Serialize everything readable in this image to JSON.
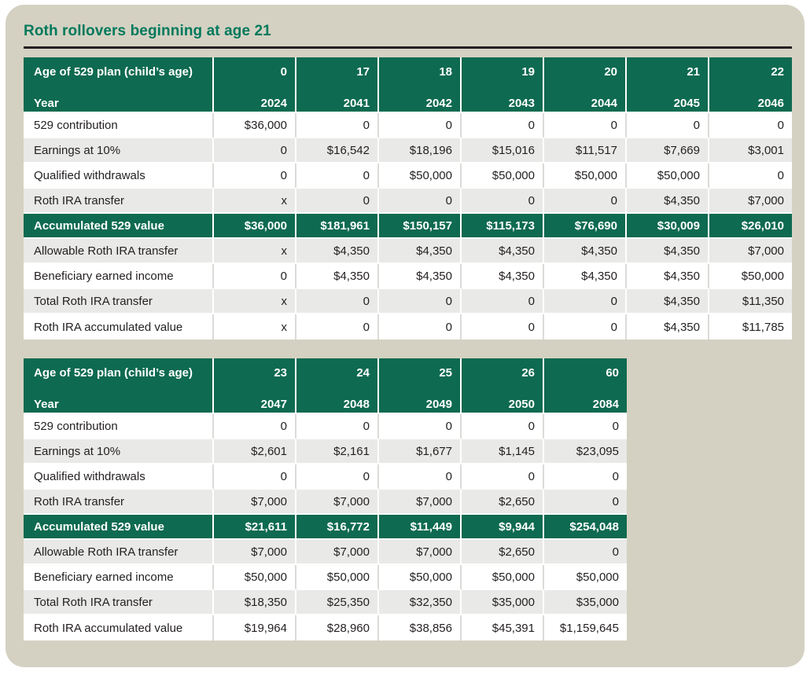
{
  "page": {
    "title": "Roth rollovers beginning at age 21"
  },
  "colors": {
    "title_green": "#00795c",
    "header_green": "#0e6a50",
    "panel_beige": "#d4d1c2",
    "row_gray": "#e9e9e7",
    "sep_gray": "#dbdbd8",
    "rule_dark": "#231f20",
    "text_dark": "#231f20"
  },
  "tables": [
    {
      "header": {
        "age_label": "Age of 529 plan (child’s age)",
        "year_label": "Year",
        "ages": [
          "0",
          "17",
          "18",
          "19",
          "20",
          "21",
          "22"
        ],
        "years": [
          "2024",
          "2041",
          "2042",
          "2043",
          "2044",
          "2045",
          "2046"
        ]
      },
      "rows": [
        {
          "label": "529 contribution",
          "style": "white",
          "values": [
            "$36,000",
            "0",
            "0",
            "0",
            "0",
            "0",
            "0"
          ]
        },
        {
          "label": "Earnings at 10%",
          "style": "gray",
          "values": [
            "0",
            "$16,542",
            "$18,196",
            "$15,016",
            "$11,517",
            "$7,669",
            "$3,001"
          ]
        },
        {
          "label": "Qualified withdrawals",
          "style": "white",
          "values": [
            "0",
            "0",
            "$50,000",
            "$50,000",
            "$50,000",
            "$50,000",
            "0"
          ]
        },
        {
          "label": "Roth IRA transfer",
          "style": "gray",
          "values": [
            "x",
            "0",
            "0",
            "0",
            "0",
            "$4,350",
            "$7,000"
          ]
        },
        {
          "label": "Accumulated 529 value",
          "style": "green",
          "values": [
            "$36,000",
            "$181,961",
            "$150,157",
            "$115,173",
            "$76,690",
            "$30,009",
            "$26,010"
          ]
        },
        {
          "label": "Allowable Roth IRA transfer",
          "style": "gray",
          "values": [
            "x",
            "$4,350",
            "$4,350",
            "$4,350",
            "$4,350",
            "$4,350",
            "$7,000"
          ]
        },
        {
          "label": "Beneficiary earned income",
          "style": "white",
          "values": [
            "0",
            "$4,350",
            "$4,350",
            "$4,350",
            "$4,350",
            "$4,350",
            "$50,000"
          ]
        },
        {
          "label": "Total Roth IRA transfer",
          "style": "gray",
          "values": [
            "x",
            "0",
            "0",
            "0",
            "0",
            "$4,350",
            "$11,350"
          ]
        },
        {
          "label": "Roth IRA accumulated value",
          "style": "white",
          "values": [
            "x",
            "0",
            "0",
            "0",
            "0",
            "$4,350",
            "$11,785"
          ]
        }
      ]
    },
    {
      "header": {
        "age_label": "Age of 529 plan (child’s age)",
        "year_label": "Year",
        "ages": [
          "23",
          "24",
          "25",
          "26",
          "60"
        ],
        "years": [
          "2047",
          "2048",
          "2049",
          "2050",
          "2084"
        ]
      },
      "rows": [
        {
          "label": "529 contribution",
          "style": "white",
          "values": [
            "0",
            "0",
            "0",
            "0",
            "0"
          ]
        },
        {
          "label": "Earnings at 10%",
          "style": "gray",
          "values": [
            "$2,601",
            "$2,161",
            "$1,677",
            "$1,145",
            "$23,095"
          ]
        },
        {
          "label": "Qualified withdrawals",
          "style": "white",
          "values": [
            "0",
            "0",
            "0",
            "0",
            "0"
          ]
        },
        {
          "label": "Roth IRA transfer",
          "style": "gray",
          "values": [
            "$7,000",
            "$7,000",
            "$7,000",
            "$2,650",
            "0"
          ]
        },
        {
          "label": "Accumulated 529 value",
          "style": "green",
          "values": [
            "$21,611",
            "$16,772",
            "$11,449",
            "$9,944",
            "$254,048"
          ]
        },
        {
          "label": "Allowable Roth IRA transfer",
          "style": "gray",
          "values": [
            "$7,000",
            "$7,000",
            "$7,000",
            "$2,650",
            "0"
          ]
        },
        {
          "label": "Beneficiary earned income",
          "style": "white",
          "values": [
            "$50,000",
            "$50,000",
            "$50,000",
            "$50,000",
            "$50,000"
          ]
        },
        {
          "label": "Total Roth IRA transfer",
          "style": "gray",
          "values": [
            "$18,350",
            "$25,350",
            "$32,350",
            "$35,000",
            "$35,000"
          ]
        },
        {
          "label": "Roth IRA accumulated value",
          "style": "white",
          "values": [
            "$19,964",
            "$28,960",
            "$38,856",
            "$45,391",
            "$1,159,645"
          ]
        }
      ]
    }
  ]
}
